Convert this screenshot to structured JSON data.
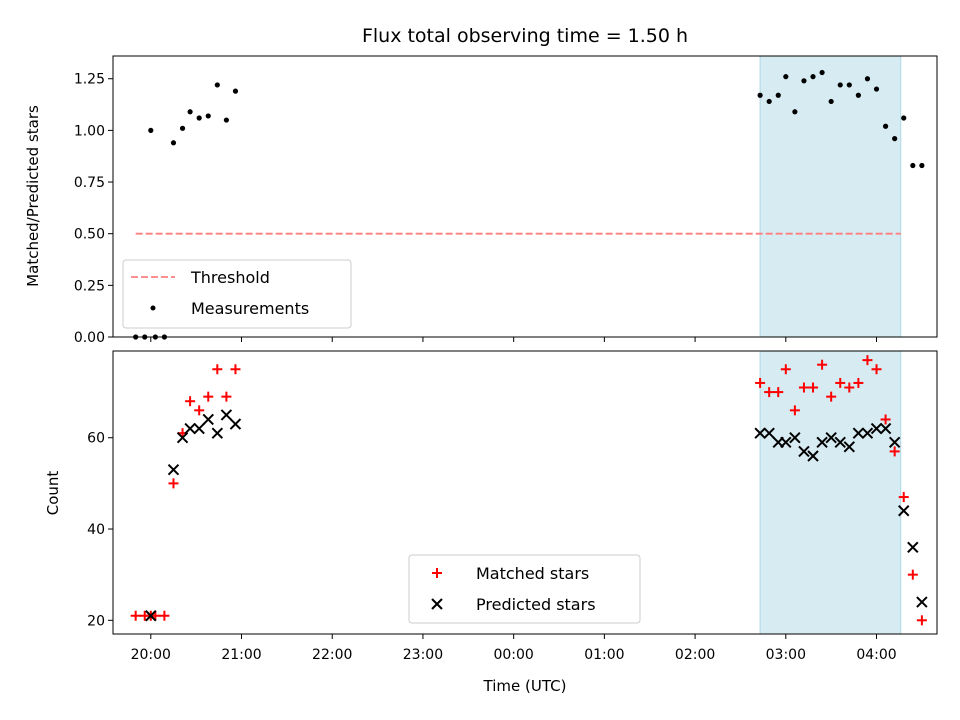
{
  "chart_data": [
    {
      "type": "scatter",
      "title": "Flux total observing time = 1.50 h",
      "ylabel": "Matched/Predicted stars",
      "xlim": [
        "19:35",
        "04:40"
      ],
      "ylim": [
        0,
        1.36
      ],
      "yticks": [
        "0.00",
        "0.25",
        "0.50",
        "0.75",
        "1.00",
        "1.25"
      ],
      "xticks_shown": false,
      "shaded_interval": [
        "02:43",
        "04:16"
      ],
      "shade_color": "#add8e6",
      "legend": {
        "placement": "lower-left",
        "entries": [
          "Threshold",
          "Measurements"
        ]
      },
      "threshold": {
        "name": "Threshold",
        "value": 0.5,
        "from": "19:50",
        "to": "04:16",
        "color": "#ff7f7f",
        "style": "dashed"
      },
      "series": [
        {
          "name": "Measurements",
          "color": "#000000",
          "marker": "dot",
          "points": [
            {
              "t": "19:50",
              "v": 0.0
            },
            {
              "t": "19:56",
              "v": 0.0
            },
            {
              "t": "20:00",
              "v": 1.0
            },
            {
              "t": "20:03",
              "v": 0.0
            },
            {
              "t": "20:09",
              "v": 0.0
            },
            {
              "t": "20:15",
              "v": 0.94
            },
            {
              "t": "20:21",
              "v": 1.01
            },
            {
              "t": "20:26",
              "v": 1.09
            },
            {
              "t": "20:32",
              "v": 1.06
            },
            {
              "t": "20:38",
              "v": 1.07
            },
            {
              "t": "20:44",
              "v": 1.22
            },
            {
              "t": "20:50",
              "v": 1.05
            },
            {
              "t": "20:56",
              "v": 1.19
            },
            {
              "t": "02:43",
              "v": 1.17
            },
            {
              "t": "02:49",
              "v": 1.14
            },
            {
              "t": "02:55",
              "v": 1.17
            },
            {
              "t": "03:00",
              "v": 1.26
            },
            {
              "t": "03:06",
              "v": 1.09
            },
            {
              "t": "03:12",
              "v": 1.24
            },
            {
              "t": "03:18",
              "v": 1.26
            },
            {
              "t": "03:24",
              "v": 1.28
            },
            {
              "t": "03:30",
              "v": 1.14
            },
            {
              "t": "03:36",
              "v": 1.22
            },
            {
              "t": "03:42",
              "v": 1.22
            },
            {
              "t": "03:48",
              "v": 1.17
            },
            {
              "t": "03:54",
              "v": 1.25
            },
            {
              "t": "04:00",
              "v": 1.2
            },
            {
              "t": "04:06",
              "v": 1.02
            },
            {
              "t": "04:12",
              "v": 0.96
            },
            {
              "t": "04:18",
              "v": 1.06
            },
            {
              "t": "04:24",
              "v": 0.83
            },
            {
              "t": "04:30",
              "v": 0.83
            }
          ]
        }
      ]
    },
    {
      "type": "scatter",
      "xlabel": "Time (UTC)",
      "ylabel": "Count",
      "xlim": [
        "19:35",
        "04:40"
      ],
      "ylim": [
        17,
        79
      ],
      "xticks": [
        "20:00",
        "21:00",
        "22:00",
        "23:00",
        "00:00",
        "01:00",
        "02:00",
        "03:00",
        "04:00"
      ],
      "yticks": [
        "20",
        "40",
        "60"
      ],
      "shaded_interval": [
        "02:43",
        "04:16"
      ],
      "shade_color": "#add8e6",
      "legend": {
        "placement": "lower-center",
        "entries": [
          "Matched stars",
          "Predicted stars"
        ]
      },
      "series": [
        {
          "name": "Matched stars",
          "color": "#ff0000",
          "marker": "plus",
          "points": [
            {
              "t": "19:50",
              "v": 21
            },
            {
              "t": "19:56",
              "v": 21
            },
            {
              "t": "20:00",
              "v": 21
            },
            {
              "t": "20:03",
              "v": 21
            },
            {
              "t": "20:09",
              "v": 21
            },
            {
              "t": "20:15",
              "v": 50
            },
            {
              "t": "20:21",
              "v": 61
            },
            {
              "t": "20:26",
              "v": 68
            },
            {
              "t": "20:32",
              "v": 66
            },
            {
              "t": "20:38",
              "v": 69
            },
            {
              "t": "20:44",
              "v": 75
            },
            {
              "t": "20:50",
              "v": 69
            },
            {
              "t": "20:56",
              "v": 75
            },
            {
              "t": "02:43",
              "v": 72
            },
            {
              "t": "02:49",
              "v": 70
            },
            {
              "t": "02:55",
              "v": 70
            },
            {
              "t": "03:00",
              "v": 75
            },
            {
              "t": "03:06",
              "v": 66
            },
            {
              "t": "03:12",
              "v": 71
            },
            {
              "t": "03:18",
              "v": 71
            },
            {
              "t": "03:24",
              "v": 76
            },
            {
              "t": "03:30",
              "v": 69
            },
            {
              "t": "03:36",
              "v": 72
            },
            {
              "t": "03:42",
              "v": 71
            },
            {
              "t": "03:48",
              "v": 72
            },
            {
              "t": "03:54",
              "v": 77
            },
            {
              "t": "04:00",
              "v": 75
            },
            {
              "t": "04:06",
              "v": 64
            },
            {
              "t": "04:12",
              "v": 57
            },
            {
              "t": "04:18",
              "v": 47
            },
            {
              "t": "04:24",
              "v": 30
            },
            {
              "t": "04:30",
              "v": 20
            }
          ]
        },
        {
          "name": "Predicted stars",
          "color": "#000000",
          "marker": "x",
          "points": [
            {
              "t": "20:00",
              "v": 21
            },
            {
              "t": "20:15",
              "v": 53
            },
            {
              "t": "20:21",
              "v": 60
            },
            {
              "t": "20:26",
              "v": 62
            },
            {
              "t": "20:32",
              "v": 62
            },
            {
              "t": "20:38",
              "v": 64
            },
            {
              "t": "20:44",
              "v": 61
            },
            {
              "t": "20:50",
              "v": 65
            },
            {
              "t": "20:56",
              "v": 63
            },
            {
              "t": "02:43",
              "v": 61
            },
            {
              "t": "02:49",
              "v": 61
            },
            {
              "t": "02:55",
              "v": 59
            },
            {
              "t": "03:00",
              "v": 59
            },
            {
              "t": "03:06",
              "v": 60
            },
            {
              "t": "03:12",
              "v": 57
            },
            {
              "t": "03:18",
              "v": 56
            },
            {
              "t": "03:24",
              "v": 59
            },
            {
              "t": "03:30",
              "v": 60
            },
            {
              "t": "03:36",
              "v": 59
            },
            {
              "t": "03:42",
              "v": 58
            },
            {
              "t": "03:48",
              "v": 61
            },
            {
              "t": "03:54",
              "v": 61
            },
            {
              "t": "04:00",
              "v": 62
            },
            {
              "t": "04:06",
              "v": 62
            },
            {
              "t": "04:12",
              "v": 59
            },
            {
              "t": "04:18",
              "v": 44
            },
            {
              "t": "04:24",
              "v": 36
            },
            {
              "t": "04:30",
              "v": 24
            }
          ]
        }
      ]
    }
  ]
}
